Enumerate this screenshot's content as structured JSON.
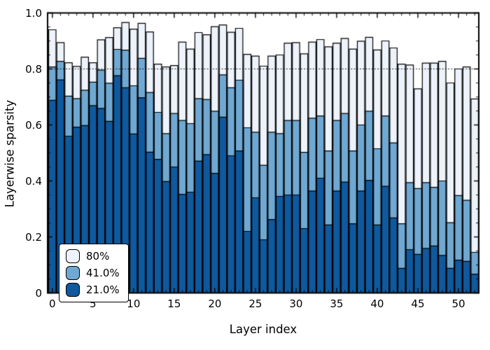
{
  "figure": {
    "xlabel": "Layer index",
    "ylabel": "Layerwise sparsity"
  },
  "colors": {
    "background": "#ffffff",
    "bar_edge": "#000000",
    "axis": "#000000",
    "reference_line": "#000000",
    "series_80": "#edf2fb",
    "series_41": "#6fa9d3",
    "series_21": "#0f599e"
  },
  "chart_data": {
    "type": "bar",
    "mode": "overlay",
    "title": "",
    "xlabel": "Layer index",
    "ylabel": "Layerwise sparsity",
    "ylim": [
      0,
      1.0
    ],
    "xlim": [
      -0.6,
      53
    ],
    "grid": false,
    "reference_line_y": 0.8,
    "reference_line_style": "dotted",
    "legend_position": "lower left",
    "xticks": [
      0,
      5,
      10,
      15,
      20,
      25,
      30,
      35,
      40,
      45,
      50
    ],
    "xtick_labels": [
      "0",
      "5",
      "10",
      "15",
      "20",
      "25",
      "30",
      "35",
      "40",
      "45",
      "50"
    ],
    "minor_xtick_step": 1,
    "ytick_values": [
      0,
      0.2,
      0.4,
      0.6,
      0.8,
      1.0
    ],
    "ytick_labels": [
      "0",
      "0.2",
      "0.4",
      "0.6",
      "0.8",
      "1.0"
    ],
    "minor_ytick_step": 0.05,
    "x": [
      0,
      1,
      2,
      3,
      4,
      5,
      6,
      7,
      8,
      9,
      10,
      11,
      12,
      13,
      14,
      15,
      16,
      17,
      18,
      19,
      20,
      21,
      22,
      23,
      24,
      25,
      26,
      27,
      28,
      29,
      30,
      31,
      32,
      33,
      34,
      35,
      36,
      37,
      38,
      39,
      40,
      41,
      42,
      43,
      44,
      45,
      46,
      47,
      48,
      49,
      50,
      51,
      52
    ],
    "legend": {
      "entries": [
        {
          "label": "80%",
          "color": "#edf2fb"
        },
        {
          "label": "41.0%",
          "color": "#6fa9d3"
        },
        {
          "label": "21.0%",
          "color": "#0f599e"
        }
      ]
    },
    "series": [
      {
        "name": "80%",
        "color": "#edf2fb",
        "values": [
          0.94,
          0.894,
          0.822,
          0.809,
          0.842,
          0.822,
          0.904,
          0.912,
          0.947,
          0.966,
          0.942,
          0.963,
          0.932,
          0.817,
          0.807,
          0.812,
          0.896,
          0.871,
          0.93,
          0.922,
          0.951,
          0.957,
          0.931,
          0.945,
          0.852,
          0.846,
          0.81,
          0.846,
          0.85,
          0.892,
          0.894,
          0.854,
          0.896,
          0.905,
          0.879,
          0.892,
          0.909,
          0.871,
          0.899,
          0.913,
          0.868,
          0.9,
          0.875,
          0.817,
          0.814,
          0.729,
          0.821,
          0.821,
          0.827,
          0.75,
          0.8,
          0.807,
          0.693
        ]
      },
      {
        "name": "41.0%",
        "color": "#6fa9d3",
        "values": [
          0.807,
          0.827,
          0.703,
          0.694,
          0.724,
          0.753,
          0.796,
          0.749,
          0.87,
          0.867,
          0.74,
          0.838,
          0.716,
          0.645,
          0.569,
          0.641,
          0.616,
          0.605,
          0.694,
          0.691,
          0.649,
          0.779,
          0.733,
          0.76,
          0.59,
          0.574,
          0.456,
          0.574,
          0.569,
          0.616,
          0.616,
          0.502,
          0.624,
          0.632,
          0.507,
          0.616,
          0.641,
          0.507,
          0.6,
          0.649,
          0.515,
          0.632,
          0.536,
          0.247,
          0.394,
          0.373,
          0.394,
          0.377,
          0.4,
          0.251,
          0.348,
          0.331,
          0.145
        ]
      },
      {
        "name": "21.0%",
        "color": "#0f599e",
        "values": [
          0.688,
          0.761,
          0.56,
          0.592,
          0.598,
          0.669,
          0.659,
          0.613,
          0.776,
          0.733,
          0.568,
          0.697,
          0.503,
          0.477,
          0.398,
          0.45,
          0.352,
          0.36,
          0.471,
          0.494,
          0.427,
          0.628,
          0.49,
          0.507,
          0.22,
          0.34,
          0.19,
          0.262,
          0.345,
          0.35,
          0.35,
          0.23,
          0.364,
          0.41,
          0.243,
          0.364,
          0.396,
          0.247,
          0.364,
          0.402,
          0.243,
          0.381,
          0.268,
          0.088,
          0.155,
          0.138,
          0.159,
          0.168,
          0.134,
          0.088,
          0.117,
          0.113,
          0.067
        ]
      }
    ]
  }
}
